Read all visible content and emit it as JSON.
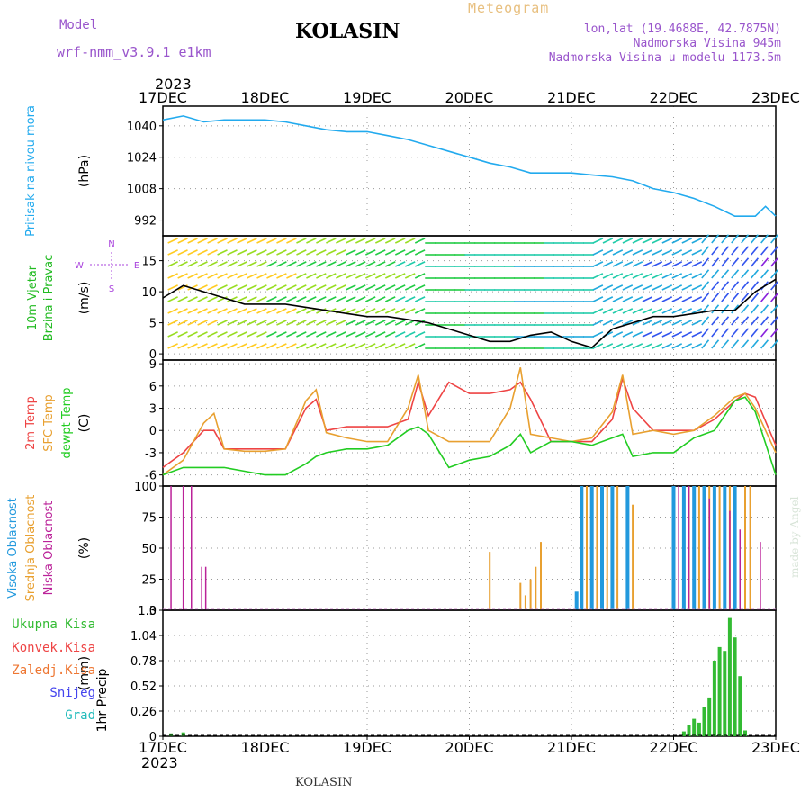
{
  "header": {
    "model_label": "Model",
    "model_name": "wrf-nmm_v3.9.1 e1km",
    "station": "KOLASIN",
    "meteogram_label": "Meteogram",
    "lonlat": "lon,lat (19.4688E, 42.7875N)",
    "elevation": "Nadmorska Visina 945m",
    "model_elevation": "Nadmorska Visina u modelu 1173.5m",
    "year": "2023",
    "year_bottom": "2023",
    "footer": "KOLASIN",
    "credit": "made by Angel"
  },
  "colors": {
    "pressure": "#22aaee",
    "temp2m": "#ee4444",
    "sfc": "#e8a030",
    "dewpt": "#22cc22",
    "high_cloud": "#2299dd",
    "mid_cloud": "#e8a030",
    "low_cloud": "#bb2299",
    "precip_total": "#33bb33",
    "precip_conv": "#ee4444",
    "precip_frz": "#ee7733",
    "snow": "#4444ee",
    "hail": "#22bbbb"
  },
  "chart_data": [
    {
      "type": "line",
      "panel": "pressure",
      "ylabel_main": "Pritisak na nivou mora",
      "ylabel_unit": "(hPa)",
      "x_ticks": [
        "17DEC",
        "18DEC",
        "19DEC",
        "20DEC",
        "21DEC",
        "22DEC",
        "23DEC"
      ],
      "yticks": [
        992,
        1008,
        1024,
        1040
      ],
      "ylim": [
        984,
        1050
      ],
      "grid": true,
      "x": [
        0,
        0.2,
        0.4,
        0.6,
        0.8,
        1,
        1.2,
        1.4,
        1.6,
        1.8,
        2,
        2.2,
        2.4,
        2.6,
        2.8,
        3,
        3.2,
        3.4,
        3.6,
        3.8,
        4,
        4.2,
        4.4,
        4.6,
        4.8,
        5,
        5.2,
        5.4,
        5.6,
        5.7,
        5.8,
        5.9,
        6
      ],
      "values": [
        1043,
        1045,
        1042,
        1043,
        1043,
        1043,
        1042,
        1040,
        1038,
        1037,
        1037,
        1035,
        1033,
        1030,
        1027,
        1024,
        1021,
        1019,
        1016,
        1016,
        1016,
        1015,
        1014,
        1012,
        1008,
        1006,
        1003,
        999,
        994,
        994,
        994,
        999,
        994
      ]
    },
    {
      "type": "line",
      "panel": "wind",
      "ylabel_main": "10m Vjetar Brzina i Pravac",
      "ylabel_unit": "(m/s)",
      "compass": [
        "N",
        "E",
        "S",
        "W"
      ],
      "yticks": [
        0,
        5,
        10,
        15
      ],
      "ylim": [
        -1,
        19
      ],
      "grid": true,
      "x": [
        0,
        0.2,
        0.4,
        0.6,
        0.8,
        1,
        1.2,
        1.4,
        1.6,
        1.8,
        2,
        2.2,
        2.4,
        2.6,
        2.8,
        3,
        3.2,
        3.4,
        3.6,
        3.8,
        4,
        4.2,
        4.4,
        4.6,
        4.8,
        5,
        5.2,
        5.4,
        5.6,
        5.8,
        6
      ],
      "values": [
        9,
        11,
        10,
        9,
        8,
        8,
        8,
        7.5,
        7,
        6.5,
        6,
        6,
        5.5,
        5,
        4,
        3,
        2,
        2,
        3,
        3.5,
        2,
        1,
        4,
        5,
        6,
        6,
        6.5,
        7,
        7,
        10,
        12
      ]
    },
    {
      "type": "line",
      "panel": "temperature",
      "ylabel_main": [
        "2m Temp",
        "SFC Temp",
        "dewpt Temp"
      ],
      "ylabel_unit": "(C)",
      "yticks": [
        -6,
        -3,
        0,
        3,
        6,
        9
      ],
      "ylim": [
        -7.5,
        9.5
      ],
      "grid": true,
      "x": [
        0,
        0.2,
        0.4,
        0.5,
        0.6,
        0.8,
        1,
        1.2,
        1.4,
        1.5,
        1.6,
        1.8,
        2,
        2.2,
        2.4,
        2.5,
        2.6,
        2.8,
        3,
        3.2,
        3.4,
        3.5,
        3.6,
        3.8,
        4,
        4.2,
        4.4,
        4.5,
        4.6,
        4.8,
        5,
        5.2,
        5.4,
        5.6,
        5.7,
        5.8,
        6
      ],
      "series": [
        {
          "name": "2m Temp",
          "values": [
            -5,
            -3,
            0,
            0,
            -2.5,
            -2.5,
            -2.5,
            -2.5,
            3,
            4.2,
            0,
            0.5,
            0.5,
            0.5,
            1.5,
            6.5,
            2,
            6.5,
            5,
            5,
            5.5,
            6.5,
            4.2,
            -1.5,
            -1.5,
            -1.5,
            1.5,
            7,
            3,
            0,
            0,
            0,
            1.5,
            4,
            5,
            4.5,
            -2
          ]
        },
        {
          "name": "SFC Temp",
          "values": [
            -6,
            -4,
            1,
            2.3,
            -2.5,
            -2.8,
            -2.8,
            -2.5,
            4,
            5.5,
            -0.3,
            -1,
            -1.5,
            -1.5,
            3,
            7.5,
            0,
            -1.5,
            -1.5,
            -1.5,
            3,
            8.5,
            -0.5,
            -1,
            -1.5,
            -1,
            2.5,
            7.5,
            -0.5,
            0,
            -0.5,
            0,
            2,
            4.5,
            5,
            3,
            -3
          ]
        },
        {
          "name": "dewpt Temp",
          "values": [
            -6,
            -5,
            -5,
            -5,
            -5,
            -5.5,
            -6,
            -6,
            -4.5,
            -3.5,
            -3,
            -2.5,
            -2.5,
            -2,
            0,
            0.5,
            -0.5,
            -5,
            -4,
            -3.5,
            -2,
            -0.5,
            -3,
            -1.5,
            -1.5,
            -2,
            -1,
            -0.5,
            -3.5,
            -3,
            -3,
            -1,
            0,
            4,
            4.5,
            2.5,
            -6
          ]
        }
      ]
    },
    {
      "type": "bar",
      "panel": "clouds",
      "ylabel_main": [
        "Visoka Oblacnost",
        "Srednja Oblacnost",
        "Niska Oblacnost"
      ],
      "ylabel_unit": "(%)",
      "yticks": [
        0,
        25,
        50,
        75,
        100
      ],
      "ylim": [
        0,
        100
      ],
      "grid": true,
      "series": [
        {
          "name": "Visoka Oblacnost",
          "x": [
            4.05,
            4.1,
            4.2,
            4.3,
            4.4,
            4.55,
            5.0,
            5.1,
            5.2,
            5.3,
            5.4,
            5.5,
            5.6
          ],
          "values": [
            15,
            100,
            100,
            100,
            100,
            100,
            100,
            100,
            100,
            100,
            100,
            100,
            100
          ]
        },
        {
          "name": "Srednja Oblacnost",
          "x": [
            3.2,
            3.5,
            3.55,
            3.6,
            3.65,
            3.7,
            4.15,
            4.25,
            4.35,
            4.45,
            4.6,
            5.15,
            5.25,
            5.35,
            5.45,
            5.55,
            5.7,
            5.75
          ],
          "values": [
            47,
            22,
            12,
            25,
            35,
            55,
            100,
            100,
            100,
            100,
            85,
            100,
            100,
            100,
            100,
            100,
            100,
            100
          ]
        },
        {
          "name": "Niska Oblacnost",
          "x": [
            0.08,
            0.2,
            0.28,
            0.38,
            0.42,
            5.05,
            5.15,
            5.35,
            5.55,
            5.65,
            5.85
          ],
          "values": [
            100,
            100,
            100,
            35,
            35,
            100,
            100,
            90,
            80,
            65,
            55
          ]
        }
      ]
    },
    {
      "type": "bar",
      "panel": "precipitation",
      "ylabel_main": "1hr Precip",
      "ylabel_unit": "(mm)",
      "legend": [
        "Ukupna Kisa",
        "Konvek.Kisa",
        "Zaledj.Kisa",
        "Snijeg",
        "Grad"
      ],
      "yticks": [
        0,
        0.26,
        0.52,
        0.78,
        1.04,
        1.3
      ],
      "ylim": [
        0,
        1.3
      ],
      "grid": true,
      "x": [
        0.08,
        0.2,
        5.1,
        5.15,
        5.2,
        5.25,
        5.3,
        5.35,
        5.4,
        5.45,
        5.5,
        5.55,
        5.6,
        5.65,
        5.7
      ],
      "values": [
        0.03,
        0.04,
        0.05,
        0.12,
        0.18,
        0.14,
        0.3,
        0.4,
        0.78,
        0.92,
        0.88,
        1.22,
        1.02,
        0.62,
        0.06
      ]
    }
  ]
}
